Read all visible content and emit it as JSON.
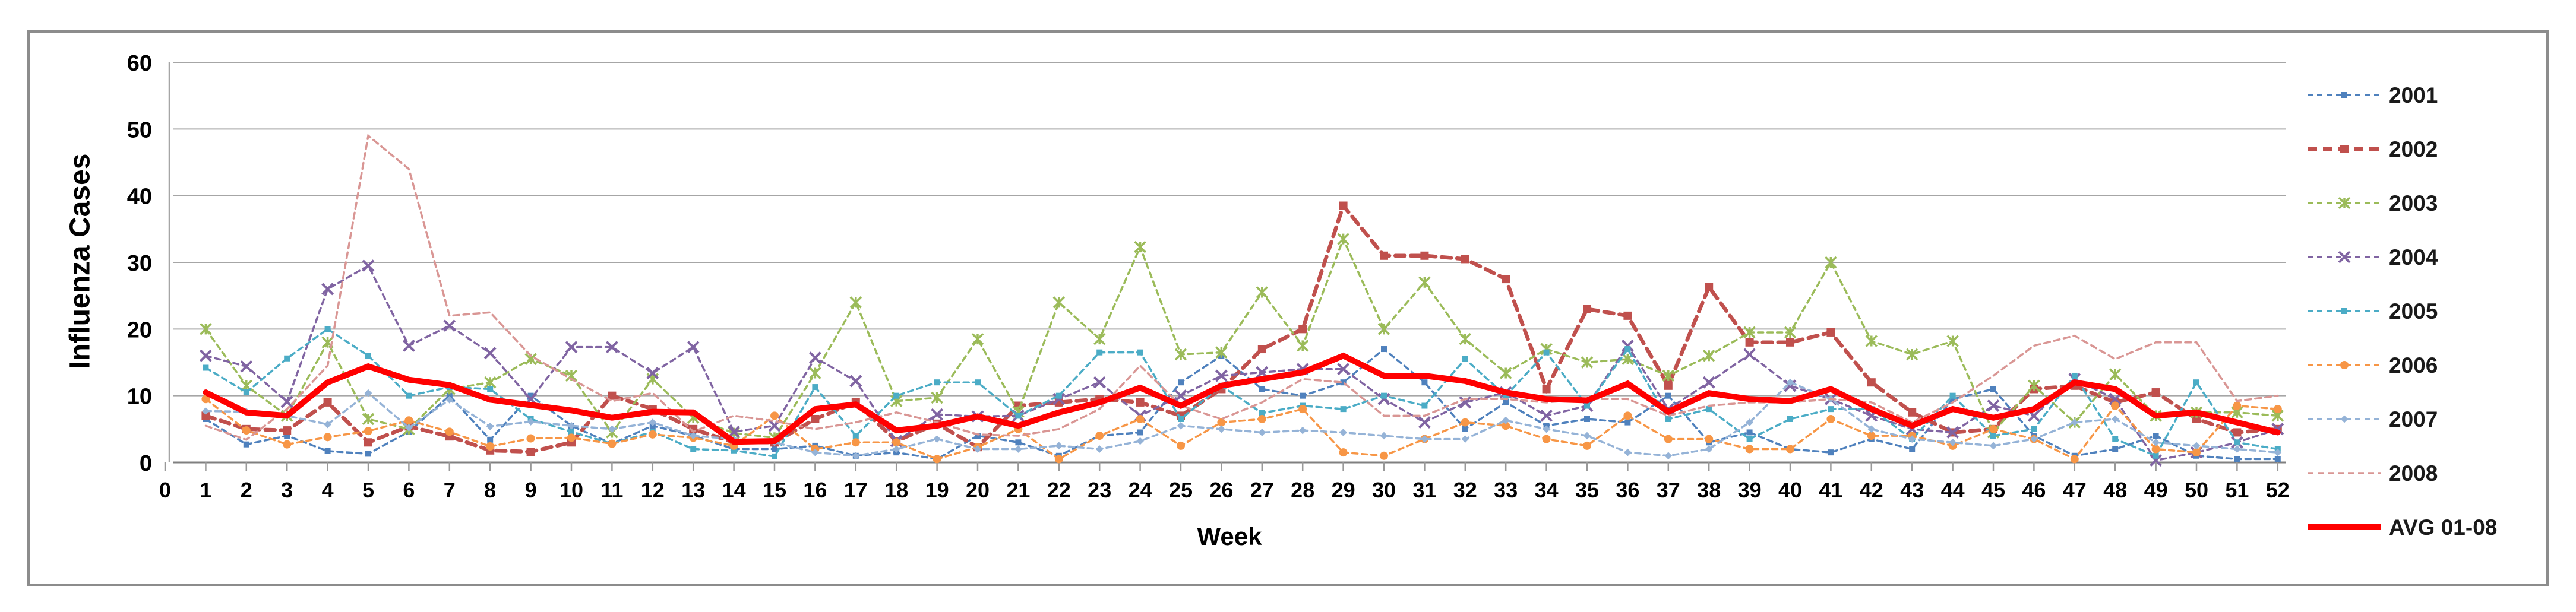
{
  "chart_data": {
    "type": "line",
    "title": "",
    "xlabel": "Week",
    "ylabel": "Influenza Cases",
    "xlim": [
      0,
      52
    ],
    "ylim": [
      0,
      60
    ],
    "yticks": [
      0,
      10,
      20,
      30,
      40,
      50,
      60
    ],
    "xticks": [
      0,
      1,
      2,
      3,
      4,
      5,
      6,
      7,
      8,
      9,
      10,
      11,
      12,
      13,
      14,
      15,
      16,
      17,
      18,
      19,
      20,
      21,
      22,
      23,
      24,
      25,
      26,
      27,
      28,
      29,
      30,
      31,
      32,
      33,
      34,
      35,
      36,
      37,
      38,
      39,
      40,
      41,
      42,
      43,
      44,
      45,
      46,
      47,
      48,
      49,
      50,
      51,
      52
    ],
    "grid": true,
    "legend_position": "right",
    "axis_color": "#a6a6a6",
    "series": [
      {
        "name": "2001",
        "color": "#4F81BD",
        "dash": "9 7",
        "width": 3.5,
        "marker": "square",
        "msize": 10,
        "values": [
          6.5,
          2.7,
          4,
          1.7,
          1.3,
          4.6,
          10,
          3.4,
          10,
          5.5,
          2.8,
          5.5,
          4,
          2,
          2,
          2.5,
          1,
          1.5,
          0.5,
          4,
          3,
          1,
          4,
          4.5,
          12,
          16,
          11,
          10,
          12,
          17,
          12,
          5,
          9,
          5.5,
          6.5,
          6,
          10,
          3,
          4.5,
          2,
          1.5,
          3.5,
          2,
          9.5,
          11,
          4,
          1,
          2,
          4,
          1,
          0.5,
          0.5
        ]
      },
      {
        "name": "2002",
        "color": "#C0504D",
        "dash": "16 10",
        "width": 6.5,
        "marker": "square",
        "msize": 14,
        "values": [
          7,
          5,
          4.8,
          9,
          3,
          5.4,
          3.9,
          1.8,
          1.6,
          3,
          10,
          8,
          5,
          3,
          3,
          6.5,
          9,
          3.2,
          5.8,
          2.3,
          8.5,
          9,
          9.5,
          9,
          7,
          11,
          17,
          20,
          38.5,
          31,
          31,
          30.5,
          27.5,
          11,
          23,
          22,
          11.5,
          26.3,
          18,
          18,
          19.5,
          12,
          7.5,
          4.5,
          5,
          11,
          11.5,
          9,
          10.5,
          6.5,
          4.5,
          5
        ]
      },
      {
        "name": "2003",
        "color": "#9BBB59",
        "dash": "9 7",
        "width": 3.5,
        "marker": "star",
        "msize": 9,
        "values": [
          20,
          11.5,
          7,
          18,
          6.5,
          5,
          11,
          12,
          15.5,
          13,
          4.5,
          12.5,
          6.7,
          4.4,
          3.7,
          13.4,
          24,
          9.2,
          9.7,
          18.5,
          7.6,
          24,
          18.5,
          32.3,
          16.2,
          16.5,
          25.5,
          17.5,
          33.5,
          20,
          27,
          18.5,
          13.4,
          17,
          15,
          15.5,
          13,
          16,
          19.5,
          19.5,
          30,
          18.2,
          16.2,
          18.2,
          4.5,
          11.5,
          6,
          13.2,
          7,
          7.5,
          7.5,
          7
        ]
      },
      {
        "name": "2004",
        "color": "#8064A2",
        "dash": "9 7",
        "width": 3.5,
        "marker": "x",
        "msize": 9,
        "values": [
          16,
          14.4,
          9.1,
          26,
          29.5,
          17.5,
          20.5,
          16.4,
          9.5,
          17.3,
          17.3,
          13.4,
          17.3,
          4.6,
          5.5,
          15.7,
          12.2,
          3.2,
          7.2,
          6.9,
          7,
          9.5,
          12,
          7,
          10,
          13,
          13.5,
          14,
          14,
          9.5,
          6,
          9,
          10.5,
          7,
          8.5,
          17.5,
          8,
          12,
          16.2,
          11.5,
          9.5,
          7,
          5,
          4.5,
          8.5,
          7,
          12.5,
          9.5,
          0.3,
          1.5,
          3,
          5
        ]
      },
      {
        "name": "2005",
        "color": "#4BACC6",
        "dash": "9 7",
        "width": 3.5,
        "marker": "square",
        "msize": 10,
        "values": [
          14.2,
          10.5,
          15.6,
          20,
          16,
          10,
          11.3,
          11,
          6.5,
          4.6,
          2.8,
          4.6,
          2,
          1.8,
          0.9,
          11.3,
          4,
          10,
          12,
          12,
          7,
          10,
          16.5,
          16.5,
          6.5,
          11.5,
          7.4,
          8.5,
          8,
          10,
          8.5,
          15.5,
          10,
          16.5,
          8.5,
          17,
          6.5,
          8,
          3.5,
          6.5,
          8,
          8,
          3.5,
          10,
          4,
          5,
          13,
          3.5,
          1,
          12,
          3,
          2
        ]
      },
      {
        "name": "2006",
        "color": "#F79646",
        "dash": "9 7",
        "width": 3.5,
        "marker": "circle",
        "msize": 7,
        "values": [
          9.5,
          4.8,
          2.7,
          3.8,
          4.7,
          6.3,
          4.6,
          2.4,
          3.6,
          3.7,
          2.8,
          4.2,
          3.7,
          2.5,
          7,
          2,
          3,
          3,
          0.5,
          2.3,
          5,
          0.5,
          4,
          6.5,
          2.5,
          6,
          6.5,
          8,
          1.5,
          1,
          3.5,
          6,
          5.5,
          3.5,
          2.5,
          7,
          3.5,
          3.5,
          2,
          2,
          6.5,
          4,
          4,
          2.5,
          5,
          3.5,
          0.5,
          8.5,
          2,
          1.5,
          8.5,
          8
        ]
      },
      {
        "name": "2007",
        "color": "#95B3D7",
        "dash": "9 7",
        "width": 3.5,
        "marker": "diamond",
        "msize": 9,
        "values": [
          7.7,
          7.6,
          7,
          5.7,
          10.4,
          5.2,
          9.4,
          5.4,
          6.1,
          5.5,
          5,
          6,
          4,
          3.5,
          3,
          1.5,
          1,
          2,
          3.5,
          2,
          2,
          2.5,
          2,
          3.2,
          5.5,
          5,
          4.5,
          4.8,
          4.5,
          4,
          3.5,
          3.5,
          6.3,
          5,
          4,
          1.5,
          1,
          2,
          6,
          12,
          9.5,
          5,
          3.5,
          3,
          2.5,
          3.5,
          6,
          6.5,
          3,
          2.5,
          2,
          1.5
        ]
      },
      {
        "name": "2008",
        "color": "#D99694",
        "dash": "10 7",
        "width": 3.5,
        "marker": "none",
        "msize": 0,
        "values": [
          5.5,
          3.4,
          8,
          14.5,
          49,
          44,
          22,
          22.5,
          16,
          12.5,
          9.2,
          10.4,
          4.6,
          7,
          6.2,
          5,
          6,
          7.5,
          6,
          4.2,
          4,
          5,
          8,
          14.5,
          8.5,
          6.5,
          9,
          12.5,
          12,
          7,
          7,
          9.5,
          9.5,
          9,
          9.5,
          9.5,
          7,
          8.5,
          9,
          9,
          9.5,
          9,
          6,
          9,
          13,
          17.5,
          19,
          15.5,
          18,
          18,
          9.2,
          10
        ]
      },
      {
        "name": "AVG 01-08",
        "color": "#FF0000",
        "dash": "",
        "width": 10,
        "marker": "none",
        "msize": 0,
        "values": [
          10.5,
          7.5,
          7,
          12,
          14.4,
          12.4,
          11.6,
          9.4,
          8.6,
          7.8,
          6.7,
          7.6,
          7.5,
          3.1,
          3.2,
          8,
          8.7,
          4.8,
          5.5,
          6.9,
          5.5,
          7.5,
          9,
          11.2,
          8.5,
          11.5,
          12.5,
          13.5,
          16,
          13,
          13,
          12.2,
          10.5,
          9.5,
          9.3,
          11.8,
          7.6,
          10.4,
          9.5,
          9.2,
          11,
          8,
          5.5,
          8,
          6.7,
          8,
          12,
          11,
          7,
          7.5,
          6,
          4.5
        ]
      }
    ]
  }
}
